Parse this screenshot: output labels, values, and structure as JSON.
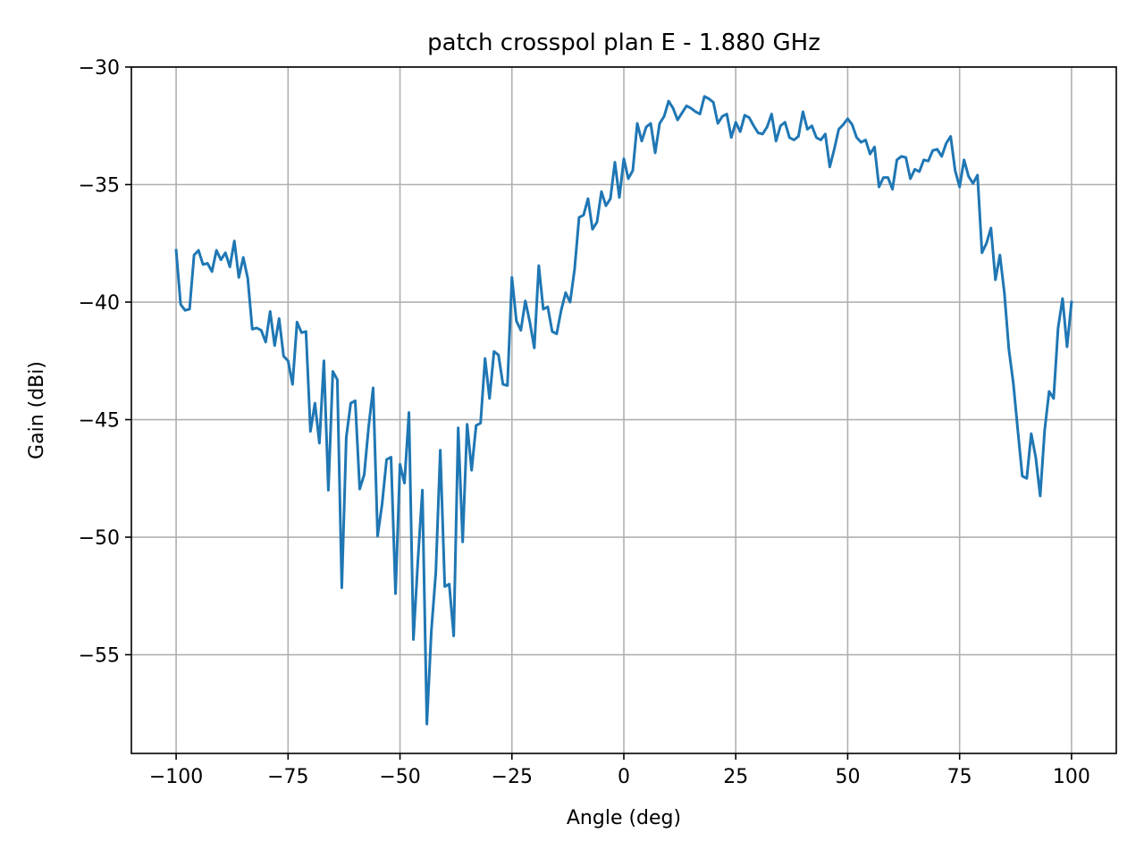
{
  "chart_data": {
    "type": "line",
    "title": "patch crosspol plan E - 1.880 GHz",
    "xlabel": "Angle (deg)",
    "ylabel": "Gain (dBi)",
    "xlim": [
      -110,
      110
    ],
    "ylim": [
      -59.2,
      -30
    ],
    "grid": true,
    "xticks": [
      -100,
      -75,
      -50,
      -25,
      0,
      25,
      50,
      75,
      100
    ],
    "xtick_labels": [
      "−100",
      "−75",
      "−50",
      "−25",
      "0",
      "25",
      "50",
      "75",
      "100"
    ],
    "yticks": [
      -30,
      -35,
      -40,
      -45,
      -50,
      -55
    ],
    "ytick_labels": [
      "−30",
      "−35",
      "−40",
      "−45",
      "−50",
      "−55"
    ],
    "series": [
      {
        "color": "#1f77b4",
        "x": [
          -100,
          -99,
          -98,
          -97,
          -96,
          -95,
          -94,
          -93,
          -92,
          -91,
          -90,
          -89,
          -88,
          -87,
          -86,
          -85,
          -84,
          -83,
          -82,
          -81,
          -80,
          -79,
          -78,
          -77,
          -76,
          -75,
          -74,
          -73,
          -72,
          -71,
          -70,
          -69,
          -68,
          -67,
          -66,
          -65,
          -64,
          -63,
          -62,
          -61,
          -60,
          -59,
          -58,
          -57,
          -56,
          -55,
          -54,
          -53,
          -52,
          -51,
          -50,
          -49,
          -48,
          -47,
          -46,
          -45,
          -44,
          -43,
          -42,
          -41,
          -40,
          -39,
          -38,
          -37,
          -36,
          -35,
          -34,
          -33,
          -32,
          -31,
          -30,
          -29,
          -28,
          -27,
          -26,
          -25,
          -24,
          -23,
          -22,
          -21,
          -20,
          -19,
          -18,
          -17,
          -16,
          -15,
          -14,
          -13,
          -12,
          -11,
          -10,
          -9,
          -8,
          -7,
          -6,
          -5,
          -4,
          -3,
          -2,
          -1,
          0,
          1,
          2,
          3,
          4,
          5,
          6,
          7,
          8,
          9,
          10,
          11,
          12,
          13,
          14,
          15,
          16,
          17,
          18,
          19,
          20,
          21,
          22,
          23,
          24,
          25,
          26,
          27,
          28,
          29,
          30,
          31,
          32,
          33,
          34,
          35,
          36,
          37,
          38,
          39,
          40,
          41,
          42,
          43,
          44,
          45,
          46,
          47,
          48,
          49,
          50,
          51,
          52,
          53,
          54,
          55,
          56,
          57,
          58,
          59,
          60,
          61,
          62,
          63,
          64,
          65,
          66,
          67,
          68,
          69,
          70,
          71,
          72,
          73,
          74,
          75,
          76,
          77,
          78,
          79,
          80,
          81,
          82,
          83,
          84,
          85,
          86,
          87,
          88,
          89,
          90,
          91,
          92,
          93,
          94,
          95,
          96,
          97,
          98,
          99,
          100
        ],
        "y": [
          -37.8,
          -40.1,
          -40.35,
          -40.3,
          -38.0,
          -37.8,
          -38.4,
          -38.35,
          -38.7,
          -37.8,
          -38.2,
          -37.9,
          -38.5,
          -37.4,
          -38.95,
          -38.1,
          -39.0,
          -41.15,
          -41.1,
          -41.2,
          -41.7,
          -40.4,
          -41.85,
          -40.7,
          -42.3,
          -42.5,
          -43.5,
          -40.85,
          -41.3,
          -41.25,
          -45.5,
          -44.3,
          -46.0,
          -42.5,
          -48.0,
          -42.95,
          -43.3,
          -52.15,
          -45.75,
          -44.3,
          -44.2,
          -47.95,
          -47.35,
          -45.3,
          -43.65,
          -49.95,
          -48.6,
          -46.7,
          -46.6,
          -52.4,
          -46.9,
          -47.7,
          -44.7,
          -54.35,
          -51.0,
          -48.0,
          -57.95,
          -54.0,
          -51.5,
          -46.3,
          -52.1,
          -52.0,
          -54.2,
          -45.35,
          -50.2,
          -45.2,
          -47.15,
          -45.25,
          -45.15,
          -42.4,
          -44.1,
          -42.1,
          -42.25,
          -43.5,
          -43.55,
          -38.95,
          -40.8,
          -41.2,
          -39.95,
          -40.85,
          -41.95,
          -38.45,
          -40.3,
          -40.2,
          -41.25,
          -41.35,
          -40.35,
          -39.6,
          -40.0,
          -38.6,
          -36.4,
          -36.3,
          -35.6,
          -36.9,
          -36.6,
          -35.3,
          -35.9,
          -35.6,
          -34.05,
          -35.55,
          -33.9,
          -34.75,
          -34.4,
          -32.4,
          -33.15,
          -32.55,
          -32.4,
          -33.65,
          -32.4,
          -32.1,
          -31.45,
          -31.75,
          -32.25,
          -31.95,
          -31.65,
          -31.75,
          -31.9,
          -32.0,
          -31.25,
          -31.35,
          -31.5,
          -32.4,
          -32.1,
          -32.0,
          -33.0,
          -32.35,
          -32.75,
          -32.05,
          -32.15,
          -32.5,
          -32.8,
          -32.85,
          -32.55,
          -32.0,
          -33.15,
          -32.5,
          -32.35,
          -33.0,
          -33.1,
          -32.95,
          -31.9,
          -32.65,
          -32.5,
          -33.0,
          -33.1,
          -32.85,
          -34.25,
          -33.5,
          -32.65,
          -32.45,
          -32.2,
          -32.45,
          -33.0,
          -33.2,
          -33.1,
          -33.7,
          -33.4,
          -35.1,
          -34.7,
          -34.7,
          -35.2,
          -33.95,
          -33.8,
          -33.85,
          -34.75,
          -34.35,
          -34.45,
          -33.95,
          -34.0,
          -33.55,
          -33.5,
          -33.8,
          -33.25,
          -32.95,
          -34.4,
          -35.1,
          -33.95,
          -34.65,
          -34.95,
          -34.6,
          -37.9,
          -37.5,
          -36.85,
          -39.05,
          -38.0,
          -39.6,
          -42.0,
          -43.45,
          -45.45,
          -47.4,
          -47.5,
          -45.6,
          -46.6,
          -48.25,
          -45.45,
          -43.8,
          -44.1,
          -41.1,
          -39.85,
          -41.9,
          -40.0
        ]
      }
    ]
  }
}
